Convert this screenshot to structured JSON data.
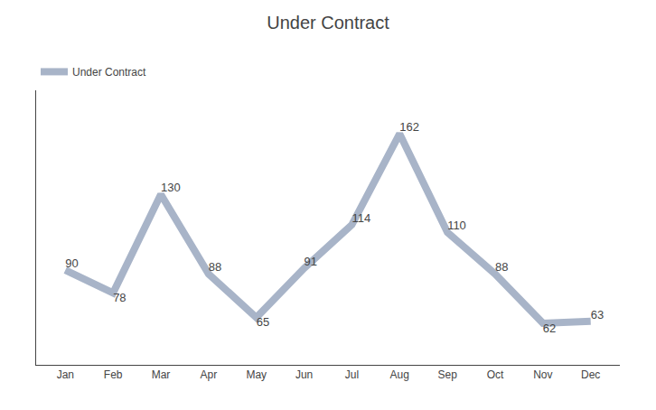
{
  "chart_data": {
    "type": "line",
    "title": "Under Contract",
    "categories": [
      "Jan",
      "Feb",
      "Mar",
      "Apr",
      "May",
      "Jun",
      "Jul",
      "Aug",
      "Sep",
      "Oct",
      "Nov",
      "Dec"
    ],
    "series": [
      {
        "name": "Under Contract",
        "color": "#a8b4c8",
        "values": [
          90,
          78,
          130,
          88,
          65,
          91,
          114,
          162,
          110,
          88,
          62,
          63
        ]
      }
    ],
    "ylim": [
      40,
      185
    ],
    "grid": false,
    "legend": "upper left",
    "data_labels": true,
    "tick_labels": "x"
  }
}
